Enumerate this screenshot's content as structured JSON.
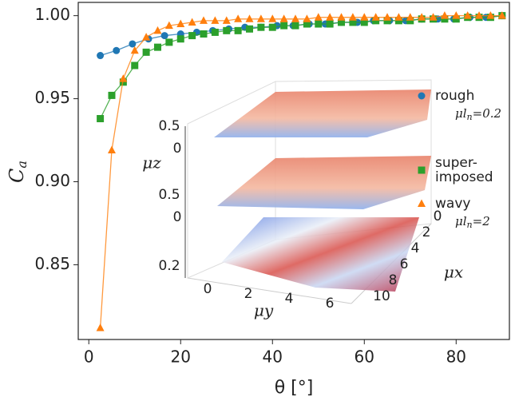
{
  "chart_data": {
    "type": "line",
    "x_label": "θ [°]",
    "y_label": {
      "base": "C",
      "sub": "a"
    },
    "xlim": [
      -2.3,
      91.6
    ],
    "ylim": [
      0.805,
      1.008
    ],
    "xticks": [
      0,
      20,
      40,
      60,
      80
    ],
    "yticks": [
      {
        "value": 0.85,
        "label": "0.85"
      },
      {
        "value": 0.9,
        "label": "0.90"
      },
      {
        "value": 0.95,
        "label": "0.95"
      },
      {
        "value": 1,
        "label": "1.00"
      }
    ],
    "series": [
      {
        "name": "rough",
        "color": "#1f77b4",
        "marker": "circle",
        "note": {
          "base": "μl",
          "sub": "n",
          "rest": "=0.2"
        },
        "x": [
          2.5,
          6,
          9.5,
          13,
          16.5,
          20,
          23.5,
          27,
          30.5,
          34,
          37.5,
          41,
          44.5,
          48,
          51.5,
          55,
          58.5,
          62,
          65.5,
          69,
          72.5,
          76,
          79.5,
          83,
          86.5,
          90
        ],
        "values": [
          0.976,
          0.979,
          0.983,
          0.986,
          0.988,
          0.989,
          0.99,
          0.991,
          0.992,
          0.993,
          0.993,
          0.994,
          0.994,
          0.995,
          0.995,
          0.996,
          0.996,
          0.997,
          0.997,
          0.997,
          0.998,
          0.998,
          0.998,
          0.999,
          0.999,
          1.0
        ]
      },
      {
        "name": "super-\nimposed",
        "color": "#2ca02c",
        "marker": "square",
        "x": [
          2.5,
          5,
          7.5,
          10,
          12.5,
          15,
          17.5,
          20,
          22.5,
          25,
          27.5,
          30,
          32.5,
          35,
          37.5,
          40,
          42.5,
          45,
          47.5,
          50,
          52.5,
          55,
          57.5,
          60,
          62.5,
          65,
          67.5,
          70,
          72.5,
          75,
          77.5,
          80,
          82.5,
          85,
          87.5,
          90
        ],
        "values": [
          0.938,
          0.952,
          0.96,
          0.97,
          0.978,
          0.981,
          0.984,
          0.986,
          0.988,
          0.989,
          0.99,
          0.991,
          0.991,
          0.992,
          0.993,
          0.993,
          0.994,
          0.994,
          0.995,
          0.995,
          0.995,
          0.996,
          0.996,
          0.996,
          0.997,
          0.997,
          0.997,
          0.997,
          0.998,
          0.998,
          0.998,
          0.998,
          0.999,
          0.999,
          0.999,
          1.0
        ]
      },
      {
        "name": "wavy",
        "color": "#ff7f0e",
        "marker": "triangle",
        "note": {
          "base": "μl",
          "sub": "n",
          "rest": "=2"
        },
        "x": [
          2.5,
          5,
          7.5,
          10,
          12.5,
          15,
          17.5,
          20,
          22.5,
          25,
          27.5,
          30,
          32.5,
          35,
          37.5,
          40,
          42.5,
          45,
          47.5,
          50,
          52.5,
          55,
          57.5,
          60,
          62.5,
          65,
          67.5,
          70,
          72.5,
          75,
          77.5,
          80,
          82.5,
          85,
          87.5,
          90
        ],
        "values": [
          0.812,
          0.919,
          0.962,
          0.979,
          0.987,
          0.991,
          0.994,
          0.995,
          0.996,
          0.997,
          0.997,
          0.997,
          0.998,
          0.998,
          0.998,
          0.998,
          0.998,
          0.998,
          0.998,
          0.999,
          0.999,
          0.999,
          0.999,
          0.999,
          0.999,
          0.999,
          0.999,
          0.999,
          0.999,
          0.999,
          1.0,
          1.0,
          1.0,
          1.0,
          1.0,
          1.0
        ]
      }
    ],
    "inset": {
      "z_label": "μz",
      "y_label": "μy",
      "x_label": "μx",
      "z_ticks_top": [
        "0.5",
        "0"
      ],
      "z_ticks_middle": [
        "0.5",
        "0"
      ],
      "z_ticks_bottom": [
        "0.2"
      ],
      "y_ticks": [
        "0",
        "2",
        "4",
        "6"
      ],
      "x_ticks": [
        "0",
        "2",
        "4",
        "6",
        "8",
        "10"
      ]
    }
  }
}
